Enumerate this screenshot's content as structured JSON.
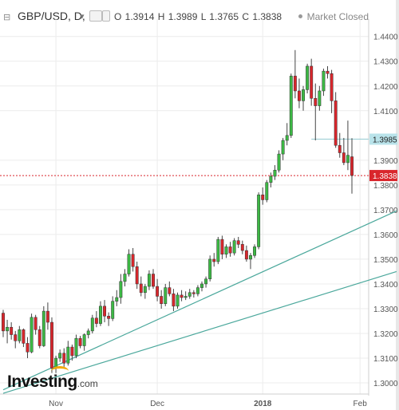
{
  "header": {
    "collapse_glyph": "⊟",
    "symbol": "GBP/USD, D,",
    "dropdown_glyph": "▾",
    "ohlc": "O 1.3914 H 1.3989 L 1.3765 C 1.3838",
    "status": "Market Closed"
  },
  "logo": {
    "name": "Investing",
    "suffix": ".com"
  },
  "colors": {
    "up": "#3cb944",
    "down": "#d9262c",
    "trendline": "#4ba89c",
    "grid": "#ececec",
    "last_label_bg": "#d9262c",
    "marker_label_bg": "#b9e3ea"
  },
  "chart_data": {
    "type": "candlestick",
    "ylim": [
      1.2955,
      1.447
    ],
    "y_ticks": [
      "1.4400",
      "1.4300",
      "1.4200",
      "1.4100",
      "1.3900",
      "1.3800",
      "1.3700",
      "1.3600",
      "1.3500",
      "1.3400",
      "1.3300",
      "1.3200",
      "1.3100",
      "1.3000"
    ],
    "x_ticks": [
      "Nov",
      "Dec",
      "2018",
      "Feb"
    ],
    "grid": true,
    "price_markers": [
      {
        "label": "1.3985",
        "value": 1.3985,
        "style": "marker"
      },
      {
        "label": "1.3838",
        "value": 1.3838,
        "style": "last"
      }
    ],
    "trendlines": [
      {
        "from": [
          0,
          1.2972
        ],
        "to": [
          97,
          1.3695
        ]
      },
      {
        "from": [
          0,
          1.2958
        ],
        "to": [
          97,
          1.345
        ]
      }
    ],
    "candles": [
      [
        1.3282,
        1.3295,
        1.3185,
        1.321
      ],
      [
        1.321,
        1.3255,
        1.316,
        1.3225
      ],
      [
        1.3225,
        1.3245,
        1.3175,
        1.3195
      ],
      [
        1.3195,
        1.321,
        1.314,
        1.317
      ],
      [
        1.317,
        1.323,
        1.316,
        1.3215
      ],
      [
        1.3215,
        1.322,
        1.3145,
        1.316
      ],
      [
        1.316,
        1.3185,
        1.31,
        1.3125
      ],
      [
        1.3125,
        1.328,
        1.312,
        1.3265
      ],
      [
        1.3265,
        1.3275,
        1.3195,
        1.3215
      ],
      [
        1.3215,
        1.323,
        1.314,
        1.315
      ],
      [
        1.315,
        1.331,
        1.3145,
        1.329
      ],
      [
        1.329,
        1.3325,
        1.3215,
        1.3245
      ],
      [
        1.3245,
        1.3265,
        1.304,
        1.306
      ],
      [
        1.306,
        1.311,
        1.304,
        1.31
      ],
      [
        1.31,
        1.3135,
        1.3085,
        1.312
      ],
      [
        1.312,
        1.314,
        1.3065,
        1.308
      ],
      [
        1.308,
        1.317,
        1.307,
        1.3145
      ],
      [
        1.3145,
        1.3155,
        1.309,
        1.311
      ],
      [
        1.311,
        1.3195,
        1.31,
        1.318
      ],
      [
        1.318,
        1.319,
        1.314,
        1.315
      ],
      [
        1.315,
        1.32,
        1.313,
        1.3195
      ],
      [
        1.3195,
        1.322,
        1.318,
        1.321
      ],
      [
        1.321,
        1.3275,
        1.32,
        1.3262
      ],
      [
        1.3262,
        1.329,
        1.3225,
        1.324
      ],
      [
        1.324,
        1.333,
        1.323,
        1.331
      ],
      [
        1.331,
        1.3335,
        1.3245,
        1.327
      ],
      [
        1.327,
        1.3285,
        1.323,
        1.326
      ],
      [
        1.326,
        1.335,
        1.325,
        1.333
      ],
      [
        1.333,
        1.3375,
        1.331,
        1.3345
      ],
      [
        1.3345,
        1.344,
        1.332,
        1.341
      ],
      [
        1.341,
        1.346,
        1.339,
        1.344
      ],
      [
        1.344,
        1.354,
        1.343,
        1.352
      ],
      [
        1.352,
        1.3545,
        1.345,
        1.347
      ],
      [
        1.347,
        1.349,
        1.338,
        1.34
      ],
      [
        1.34,
        1.343,
        1.335,
        1.3365
      ],
      [
        1.3365,
        1.34,
        1.334,
        1.339
      ],
      [
        1.339,
        1.3455,
        1.3375,
        1.344
      ],
      [
        1.344,
        1.346,
        1.338,
        1.339
      ],
      [
        1.339,
        1.342,
        1.333,
        1.335
      ],
      [
        1.335,
        1.3375,
        1.33,
        1.332
      ],
      [
        1.332,
        1.34,
        1.331,
        1.3385
      ],
      [
        1.3385,
        1.341,
        1.335,
        1.336
      ],
      [
        1.336,
        1.338,
        1.329,
        1.331
      ],
      [
        1.331,
        1.3365,
        1.33,
        1.3355
      ],
      [
        1.3355,
        1.3375,
        1.333,
        1.3345
      ],
      [
        1.3345,
        1.337,
        1.3335,
        1.335
      ],
      [
        1.335,
        1.338,
        1.334,
        1.3365
      ],
      [
        1.3365,
        1.3375,
        1.3345,
        1.336
      ],
      [
        1.336,
        1.3395,
        1.335,
        1.3385
      ],
      [
        1.3385,
        1.341,
        1.337,
        1.34
      ],
      [
        1.34,
        1.343,
        1.3385,
        1.342
      ],
      [
        1.342,
        1.3515,
        1.341,
        1.35
      ],
      [
        1.35,
        1.3525,
        1.347,
        1.349
      ],
      [
        1.349,
        1.359,
        1.348,
        1.358
      ],
      [
        1.358,
        1.3595,
        1.35,
        1.352
      ],
      [
        1.352,
        1.356,
        1.3505,
        1.355
      ],
      [
        1.355,
        1.357,
        1.351,
        1.3525
      ],
      [
        1.3525,
        1.3585,
        1.3515,
        1.3575
      ],
      [
        1.3575,
        1.359,
        1.3545,
        1.356
      ],
      [
        1.356,
        1.3575,
        1.352,
        1.3535
      ],
      [
        1.3535,
        1.3555,
        1.349,
        1.35
      ],
      [
        1.35,
        1.3525,
        1.346,
        1.3515
      ],
      [
        1.3515,
        1.356,
        1.3505,
        1.355
      ],
      [
        1.355,
        1.377,
        1.354,
        1.376
      ],
      [
        1.376,
        1.379,
        1.372,
        1.374
      ],
      [
        1.374,
        1.382,
        1.373,
        1.381
      ],
      [
        1.381,
        1.385,
        1.379,
        1.3835
      ],
      [
        1.3835,
        1.388,
        1.382,
        1.386
      ],
      [
        1.386,
        1.394,
        1.385,
        1.3925
      ],
      [
        1.3925,
        1.399,
        1.39,
        1.398
      ],
      [
        1.398,
        1.405,
        1.396,
        1.4
      ],
      [
        1.4,
        1.425,
        1.399,
        1.424
      ],
      [
        1.424,
        1.4345,
        1.415,
        1.418
      ],
      [
        1.418,
        1.423,
        1.411,
        1.414
      ],
      [
        1.414,
        1.42,
        1.41,
        1.4185
      ],
      [
        1.4185,
        1.429,
        1.417,
        1.428
      ],
      [
        1.428,
        1.431,
        1.412,
        1.415
      ],
      [
        1.415,
        1.421,
        1.398,
        1.412
      ],
      [
        1.412,
        1.42,
        1.41,
        1.418
      ],
      [
        1.418,
        1.427,
        1.416,
        1.426
      ],
      [
        1.426,
        1.428,
        1.423,
        1.425
      ],
      [
        1.425,
        1.4265,
        1.409,
        1.414
      ],
      [
        1.414,
        1.4175,
        1.395,
        1.396
      ],
      [
        1.396,
        1.401,
        1.391,
        1.393
      ],
      [
        1.393,
        1.399,
        1.388,
        1.389
      ],
      [
        1.389,
        1.406,
        1.386,
        1.392
      ],
      [
        1.3914,
        1.3989,
        1.3765,
        1.3838
      ]
    ]
  }
}
